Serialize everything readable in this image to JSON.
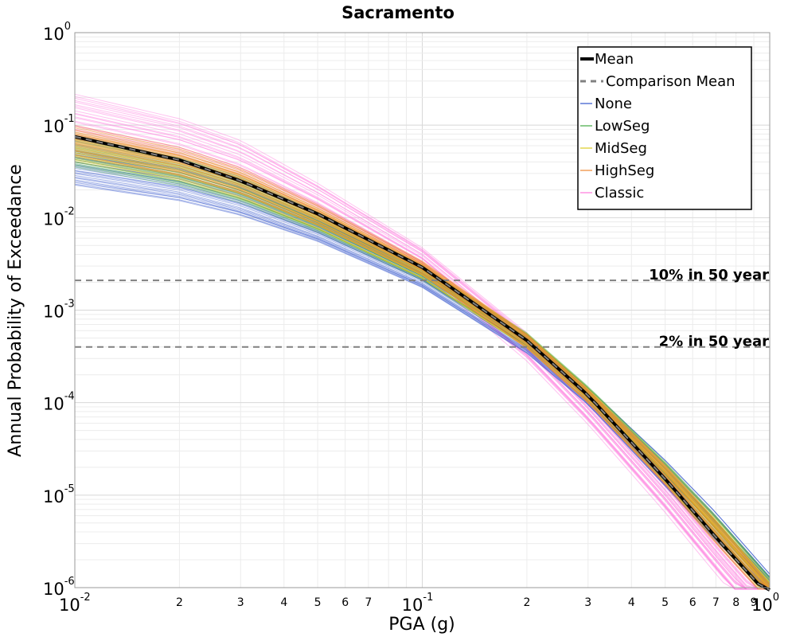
{
  "chart_data": {
    "type": "line",
    "title": "Sacramento",
    "xlabel": "PGA (g)",
    "ylabel": "Annual Probability of Exceedance",
    "xscale": "log",
    "yscale": "log",
    "xlim": [
      0.01,
      1.0
    ],
    "ylim": [
      1e-06,
      1.0
    ],
    "grid": true,
    "legend_position": "top-right",
    "x_decade_ticks": [
      {
        "base": "10",
        "exp": "-2"
      },
      {
        "base": "10",
        "exp": "-1"
      },
      {
        "base": "10",
        "exp": "0"
      }
    ],
    "y_decade_ticks": [
      {
        "base": "10",
        "exp": "0"
      },
      {
        "base": "10",
        "exp": "-1"
      },
      {
        "base": "10",
        "exp": "-2"
      },
      {
        "base": "10",
        "exp": "-3"
      },
      {
        "base": "10",
        "exp": "-4"
      },
      {
        "base": "10",
        "exp": "-5"
      },
      {
        "base": "10",
        "exp": "-6"
      }
    ],
    "x_minor_tick_labels": [
      "2",
      "3",
      "4",
      "5",
      "6",
      "7",
      "2",
      "3",
      "4",
      "5",
      "6",
      "7",
      "8",
      "9"
    ],
    "x_minor_tick_values": [
      0.02,
      0.03,
      0.04,
      0.05,
      0.06,
      0.07,
      0.2,
      0.3,
      0.4,
      0.5,
      0.6,
      0.7,
      0.8,
      0.9
    ],
    "x": [
      0.01,
      0.02,
      0.03,
      0.05,
      0.1,
      0.2,
      0.3,
      0.5,
      0.7,
      1.0
    ],
    "series": [
      {
        "name": "Mean",
        "style": "solid-thick",
        "color": "#000000",
        "values": [
          0.075,
          0.042,
          0.025,
          0.011,
          0.0029,
          0.00047,
          0.00012,
          1.5e-05,
          3.5e-06,
          8e-07
        ]
      },
      {
        "name": "Comparison Mean",
        "style": "dashed",
        "color": "#808080",
        "values": [
          0.075,
          0.042,
          0.025,
          0.011,
          0.0029,
          0.00047,
          0.00012,
          1.5e-05,
          3.5e-06,
          8e-07
        ]
      }
    ],
    "branch_bands": [
      {
        "name": "None",
        "color": "#3355cc",
        "low": [
          0.022,
          0.015,
          0.0105,
          0.0055,
          0.00175,
          0.00034,
          9.5e-05,
          1.25e-05,
          3.2e-06,
          8.5e-07
        ],
        "high": [
          0.055,
          0.035,
          0.022,
          0.0095,
          0.0027,
          0.00055,
          0.000145,
          2.4e-05,
          6.5e-06,
          1.4e-06
        ]
      },
      {
        "name": "LowSeg",
        "color": "#44aa44",
        "low": [
          0.035,
          0.022,
          0.0145,
          0.007,
          0.0021,
          0.00039,
          0.000105,
          1.4e-05,
          3.4e-06,
          8e-07
        ],
        "high": [
          0.075,
          0.045,
          0.028,
          0.0115,
          0.003,
          0.00057,
          0.00015,
          2.3e-05,
          6e-06,
          1.3e-06
        ]
      },
      {
        "name": "MidSeg",
        "color": "#ddcc22",
        "low": [
          0.04,
          0.025,
          0.016,
          0.0075,
          0.0022,
          0.00039,
          0.0001,
          1.35e-05,
          3.3e-06,
          7.5e-07
        ],
        "high": [
          0.085,
          0.05,
          0.031,
          0.0125,
          0.0032,
          0.00056,
          0.000145,
          2.2e-05,
          5.7e-06,
          1.2e-06
        ]
      },
      {
        "name": "HighSeg",
        "color": "#ee8833",
        "low": [
          0.045,
          0.028,
          0.018,
          0.0082,
          0.0024,
          0.00039,
          0.0001,
          1.3e-05,
          3e-06,
          7e-07
        ],
        "high": [
          0.1,
          0.058,
          0.035,
          0.014,
          0.0034,
          0.00055,
          0.00014,
          2.1e-05,
          5.3e-06,
          1.1e-06
        ]
      },
      {
        "name": "Classic",
        "color": "#ff77dd",
        "low": [
          0.06,
          0.036,
          0.022,
          0.0095,
          0.0025,
          0.00028,
          5.8e-05,
          6.5e-06,
          1.4e-06,
          3e-07
        ],
        "high": [
          0.22,
          0.12,
          0.07,
          0.024,
          0.0048,
          0.00058,
          0.00012,
          1.45e-05,
          3.2e-06,
          7e-07
        ]
      }
    ],
    "reference_lines": [
      {
        "label": "10% in 50 year",
        "y": 0.0021
      },
      {
        "label": "2% in 50 year",
        "y": 0.0004
      }
    ],
    "legend": [
      {
        "label": "Mean",
        "style": "solid-thick",
        "color": "#000000"
      },
      {
        "label": "Comparison Mean",
        "style": "dashed",
        "color": "#808080"
      },
      {
        "label": "None",
        "style": "thin",
        "color": "#3355cc"
      },
      {
        "label": "LowSeg",
        "style": "thin",
        "color": "#44aa44"
      },
      {
        "label": "MidSeg",
        "style": "thin",
        "color": "#ddcc22"
      },
      {
        "label": "HighSeg",
        "style": "thin",
        "color": "#ee8833"
      },
      {
        "label": "Classic",
        "style": "thin",
        "color": "#ff77dd"
      }
    ]
  }
}
